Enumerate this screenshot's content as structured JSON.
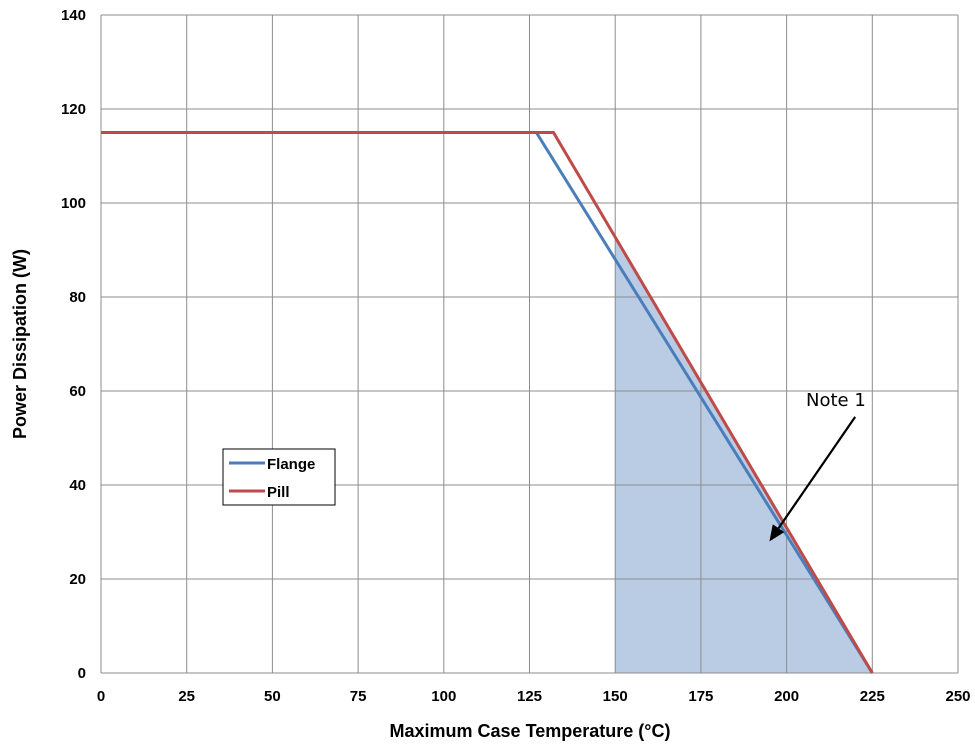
{
  "chart_data": {
    "type": "line",
    "xlabel": "Maximum Case Temperature (°C)",
    "ylabel": "Power Dissipation (W)",
    "xlim": [
      0,
      250
    ],
    "ylim": [
      0,
      140
    ],
    "xticks": [
      0,
      25,
      50,
      75,
      100,
      125,
      150,
      175,
      200,
      225,
      250
    ],
    "yticks": [
      0,
      20,
      40,
      60,
      80,
      100,
      120,
      140
    ],
    "grid": true,
    "legend_position": "left-middle",
    "series": [
      {
        "name": "Flange",
        "color": "#4a7ebb",
        "x": [
          0,
          127,
          225
        ],
        "y": [
          115,
          115,
          0
        ]
      },
      {
        "name": "Pill",
        "color": "#be4b48",
        "x": [
          0,
          132,
          225
        ],
        "y": [
          115,
          115,
          0
        ]
      }
    ],
    "shaded_region": {
      "color": "#b9cce4",
      "x": [
        150,
        225
      ],
      "upper_y": [
        92.5,
        0
      ]
    },
    "annotation": {
      "text": "Note 1",
      "arrow_from": [
        220,
        54.5
      ],
      "arrow_to": [
        195,
        28
      ]
    }
  }
}
